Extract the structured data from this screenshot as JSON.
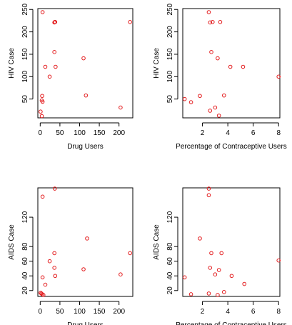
{
  "point_color": "#e31a1c",
  "chart_data": [
    {
      "type": "scatter",
      "xlabel": "Drug Users",
      "ylabel": "HIV Case",
      "xlim": [
        -6,
        235
      ],
      "ylim": [
        8,
        252
      ],
      "xticks": [
        "0",
        "50",
        "100",
        "150",
        "200"
      ],
      "xtick_values": [
        0,
        50,
        100,
        150,
        200
      ],
      "yticks": [
        "50",
        "100",
        "150",
        "200",
        "250"
      ],
      "ytick_values": [
        50,
        100,
        150,
        200,
        250
      ],
      "points": [
        [
          6,
          244
        ],
        [
          37,
          222
        ],
        [
          38,
          222
        ],
        [
          36,
          221
        ],
        [
          228,
          222
        ],
        [
          36,
          155
        ],
        [
          13,
          122
        ],
        [
          39,
          122
        ],
        [
          24,
          100
        ],
        [
          110,
          141
        ],
        [
          5,
          57
        ],
        [
          4,
          47
        ],
        [
          6,
          44
        ],
        [
          116,
          58
        ],
        [
          1,
          22
        ],
        [
          4,
          12
        ],
        [
          204,
          31
        ]
      ]
    },
    {
      "type": "scatter",
      "xlabel": "Percentage of Contraceptive Users",
      "ylabel": "HIV Case",
      "xlim": [
        0.45,
        8.1
      ],
      "ylim": [
        8,
        252
      ],
      "xticks": [
        "2",
        "4",
        "6",
        "8"
      ],
      "xtick_values": [
        2,
        4,
        6,
        8
      ],
      "yticks": [
        "50",
        "100",
        "150",
        "200",
        "250"
      ],
      "ytick_values": [
        50,
        100,
        150,
        200,
        250
      ],
      "points": [
        [
          2.5,
          244
        ],
        [
          2.6,
          221
        ],
        [
          2.8,
          222
        ],
        [
          3.4,
          222
        ],
        [
          2.7,
          155
        ],
        [
          3.2,
          141
        ],
        [
          4.2,
          122
        ],
        [
          5.2,
          122
        ],
        [
          8.0,
          100
        ],
        [
          0.6,
          50
        ],
        [
          1.1,
          43
        ],
        [
          1.8,
          57
        ],
        [
          3.7,
          58
        ],
        [
          2.6,
          24
        ],
        [
          3.0,
          31
        ],
        [
          3.3,
          13
        ]
      ]
    },
    {
      "type": "scatter",
      "xlabel": "Drug Users",
      "ylabel": "AIDS Case",
      "xlim": [
        -6,
        235
      ],
      "ylim": [
        12,
        160
      ],
      "xticks": [
        "0",
        "50",
        "100",
        "150",
        "200"
      ],
      "xtick_values": [
        0,
        50,
        100,
        150,
        200
      ],
      "yticks": [
        "20",
        "40",
        "60",
        "80",
        "120"
      ],
      "ytick_values": [
        20,
        40,
        60,
        80,
        120
      ],
      "points": [
        [
          37,
          159
        ],
        [
          6,
          148
        ],
        [
          119,
          91
        ],
        [
          36,
          71
        ],
        [
          228,
          71
        ],
        [
          24,
          60
        ],
        [
          36,
          51
        ],
        [
          110,
          49
        ],
        [
          6,
          38
        ],
        [
          38,
          40
        ],
        [
          204,
          42
        ],
        [
          13,
          28
        ],
        [
          1,
          17
        ],
        [
          3,
          16
        ],
        [
          5,
          15
        ],
        [
          8,
          14
        ]
      ]
    },
    {
      "type": "scatter",
      "xlabel": "Percentage of Contraceptive Users",
      "ylabel": "AIDS Case",
      "xlim": [
        0.45,
        8.1
      ],
      "ylim": [
        12,
        160
      ],
      "xticks": [
        "2",
        "4",
        "6",
        "8"
      ],
      "xtick_values": [
        2,
        4,
        6,
        8
      ],
      "yticks": [
        "20",
        "40",
        "60",
        "80",
        "120"
      ],
      "ytick_values": [
        20,
        40,
        60,
        80,
        120
      ],
      "points": [
        [
          2.5,
          159
        ],
        [
          2.5,
          150
        ],
        [
          1.8,
          91
        ],
        [
          2.7,
          71
        ],
        [
          3.5,
          71
        ],
        [
          8.0,
          61
        ],
        [
          2.6,
          51
        ],
        [
          3.3,
          48
        ],
        [
          3.0,
          42
        ],
        [
          4.3,
          40
        ],
        [
          0.6,
          38
        ],
        [
          5.3,
          29
        ],
        [
          1.1,
          15
        ],
        [
          2.5,
          16
        ],
        [
          3.2,
          14
        ],
        [
          3.7,
          18
        ]
      ]
    }
  ]
}
